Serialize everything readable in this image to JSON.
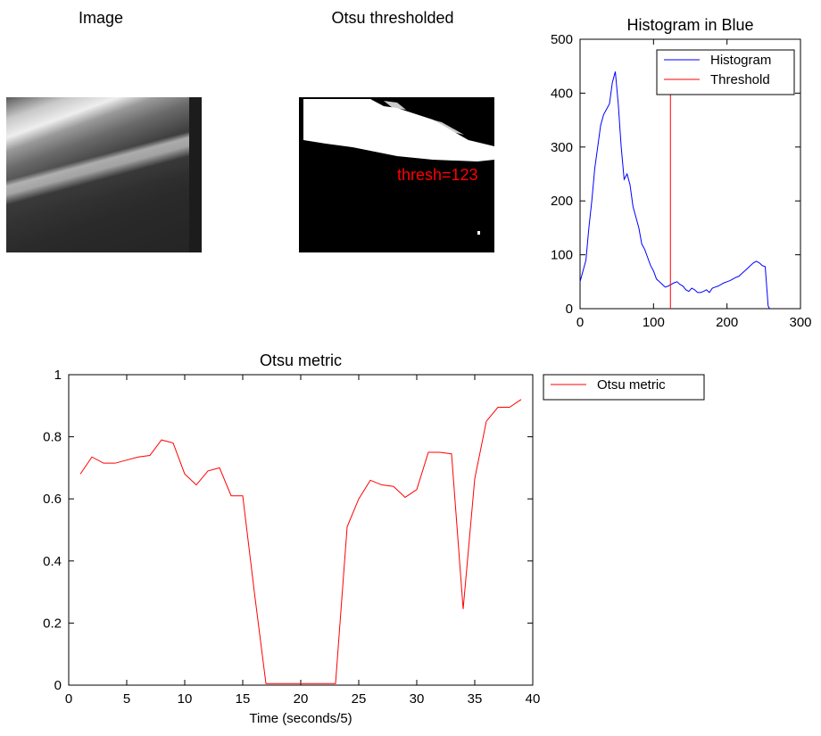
{
  "panels": {
    "image": {
      "title": "Image"
    },
    "thresholded": {
      "title": "Otsu thresholded",
      "annotation": "thresh=123",
      "annotation_color": "#ff0000"
    }
  },
  "chart_data": [
    {
      "type": "line",
      "title": "Histogram in Blue",
      "xlabel": "",
      "ylabel": "",
      "xlim": [
        0,
        300
      ],
      "ylim": [
        0,
        500
      ],
      "xticks": [
        0,
        100,
        200,
        300
      ],
      "yticks": [
        0,
        100,
        200,
        300,
        400,
        500
      ],
      "grid": false,
      "legend_position": "top-right",
      "series": [
        {
          "name": "Histogram",
          "color": "#0000ff",
          "x": [
            0,
            4,
            8,
            12,
            16,
            20,
            24,
            28,
            32,
            36,
            40,
            44,
            48,
            52,
            56,
            60,
            64,
            68,
            72,
            76,
            80,
            84,
            88,
            92,
            96,
            100,
            104,
            108,
            112,
            116,
            120,
            124,
            128,
            132,
            136,
            140,
            144,
            148,
            152,
            156,
            160,
            164,
            168,
            172,
            176,
            180,
            184,
            188,
            192,
            196,
            200,
            204,
            208,
            212,
            216,
            220,
            224,
            228,
            232,
            236,
            240,
            244,
            248,
            252,
            256,
            258
          ],
          "values": [
            50,
            70,
            90,
            150,
            200,
            260,
            300,
            340,
            360,
            370,
            380,
            420,
            440,
            380,
            300,
            240,
            250,
            230,
            190,
            170,
            150,
            120,
            110,
            95,
            80,
            70,
            55,
            50,
            45,
            40,
            42,
            45,
            48,
            50,
            45,
            42,
            35,
            32,
            38,
            35,
            30,
            30,
            32,
            35,
            30,
            38,
            40,
            42,
            45,
            48,
            50,
            52,
            55,
            58,
            60,
            65,
            70,
            75,
            80,
            85,
            88,
            85,
            80,
            78,
            5,
            0
          ]
        },
        {
          "name": "Threshold",
          "color": "#ff0000",
          "x": [
            123,
            123
          ],
          "values": [
            0,
            400
          ]
        }
      ]
    },
    {
      "type": "line",
      "title": "Otsu metric",
      "xlabel": "Time (seconds/5)",
      "ylabel": "",
      "xlim": [
        0,
        40
      ],
      "ylim": [
        0,
        1
      ],
      "xticks": [
        0,
        5,
        10,
        15,
        20,
        25,
        30,
        35,
        40
      ],
      "yticks": [
        0,
        0.2,
        0.4,
        0.6,
        0.8,
        1
      ],
      "grid": false,
      "legend_position": "outside-top-right",
      "series": [
        {
          "name": "Otsu metric",
          "color": "#ff0000",
          "x": [
            1,
            2,
            3,
            4,
            5,
            6,
            7,
            8,
            9,
            10,
            11,
            12,
            13,
            14,
            15,
            16,
            17,
            18,
            19,
            20,
            21,
            22,
            23,
            24,
            25,
            26,
            27,
            28,
            29,
            30,
            31,
            32,
            33,
            34,
            35,
            36,
            37,
            38,
            39
          ],
          "values": [
            0.68,
            0.735,
            0.715,
            0.715,
            0.725,
            0.735,
            0.74,
            0.79,
            0.78,
            0.68,
            0.645,
            0.69,
            0.7,
            0.61,
            0.61,
            0.3,
            0.005,
            0.005,
            0.005,
            0.005,
            0.005,
            0.005,
            0.005,
            0.51,
            0.6,
            0.66,
            0.645,
            0.64,
            0.605,
            0.63,
            0.75,
            0.75,
            0.745,
            0.245,
            0.665,
            0.85,
            0.895,
            0.895,
            0.92
          ]
        }
      ]
    }
  ]
}
